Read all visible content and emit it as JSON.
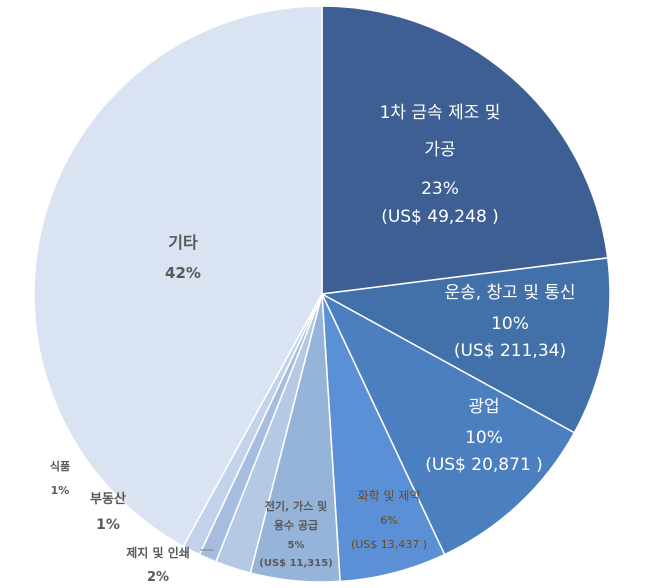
{
  "chart_data": {
    "type": "pie",
    "start_angle_deg": 0,
    "direction": "clockwise",
    "slices": [
      {
        "label_lines": [
          "1차 금속 제조 및",
          "가공"
        ],
        "percent_label": "23%",
        "amount_label": "(US$  49,248 )",
        "value": 23,
        "color": "#3e5f93"
      },
      {
        "label_lines": [
          "운송, 창고 및 통신"
        ],
        "percent_label": "10%",
        "amount_label": "(US$ 211,34)",
        "value": 10,
        "color": "#4270a8"
      },
      {
        "label_lines": [
          "광업"
        ],
        "percent_label": "10%",
        "amount_label": "(US$  20,871 )",
        "value": 10,
        "color": "#4b7fc0"
      },
      {
        "label_lines": [
          "화학 및 제약"
        ],
        "percent_label": "6%",
        "amount_label": "(US$  13,437 )",
        "value": 6,
        "color": "#5b8fd6"
      },
      {
        "label_lines": [
          "전기, 가스 및",
          "용수 공급"
        ],
        "percent_label": "5%",
        "amount_label": "(US$ 11,315)",
        "value": 5,
        "color": "#96b3d9"
      },
      {
        "label_lines": [
          "제지 및 인쇄"
        ],
        "percent_label": "2%",
        "amount_label": "",
        "value": 2,
        "color": "#b5c8e4"
      },
      {
        "label_lines": [
          "부동산"
        ],
        "percent_label": "1%",
        "amount_label": "",
        "value": 1,
        "color": "#a7bddf"
      },
      {
        "label_lines": [
          "식품"
        ],
        "percent_label": "1%",
        "amount_label": "",
        "value": 1,
        "color": "#c2d2ea"
      },
      {
        "label_lines": [
          "기타"
        ],
        "percent_label": "42%",
        "amount_label": "",
        "value": 42,
        "color": "#dae3f2"
      }
    ]
  }
}
